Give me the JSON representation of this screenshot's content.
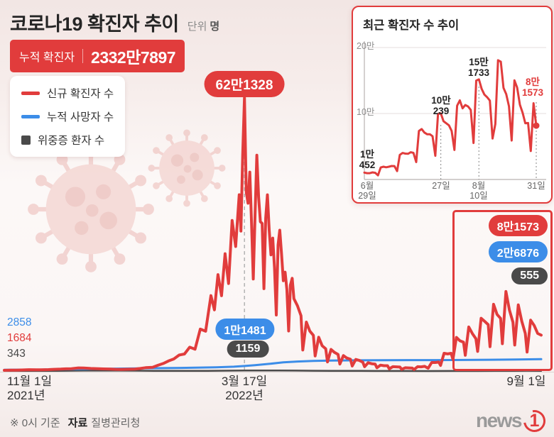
{
  "accent": {
    "red": "#e13c3c",
    "blue": "#3c8de8",
    "dark": "#4a4a4a"
  },
  "header": {
    "title": "코로나19 확진자 추이",
    "unit_label": "단위",
    "unit_value": "명",
    "cumulative_label": "누적 확진자",
    "cumulative_value": "2332만7897"
  },
  "legend": {
    "items": [
      {
        "label": "신규 확진자 수",
        "color": "#e13c3c",
        "shape": "line"
      },
      {
        "label": "누적 사망자 수",
        "color": "#3c8de8",
        "shape": "line"
      },
      {
        "label": "위중증 환자 수",
        "color": "#4a4a4a",
        "shape": "square"
      }
    ]
  },
  "footer": {
    "note_mark": "※ 0시 기준",
    "source_label": "자료",
    "source_value": "질병관리청",
    "logo_news": "news",
    "logo_one": "1"
  },
  "chart_data": {
    "type": "line",
    "title": "코로나19 확진자 추이",
    "unit": "명",
    "main": {
      "x_range_days": 304,
      "y_max": 650000,
      "x_ticks": [
        {
          "day": 0,
          "line1": "11월 1일",
          "line2": "2021년"
        },
        {
          "day": 136,
          "line1": "3월 17일",
          "line2": "2022년"
        },
        {
          "day": 304,
          "line1": "9월 1일",
          "line2": ""
        }
      ],
      "series": [
        {
          "name": "신규 확진자 수",
          "color": "#e13c3c",
          "width": 4,
          "points": [
            [
              0,
              1684
            ],
            [
              4,
              2061
            ],
            [
              7,
              2111
            ],
            [
              10,
              2425
            ],
            [
              14,
              3120
            ],
            [
              18,
              2699
            ],
            [
              21,
              2827
            ],
            [
              25,
              3273
            ],
            [
              28,
              3928
            ],
            [
              32,
              4325
            ],
            [
              35,
              4954
            ],
            [
              38,
              5352
            ],
            [
              42,
              7175
            ],
            [
              45,
              6919
            ],
            [
              49,
              5817
            ],
            [
              52,
              5419
            ],
            [
              56,
              4875
            ],
            [
              60,
              4416
            ],
            [
              63,
              3833
            ],
            [
              66,
              3717
            ],
            [
              70,
              4072
            ],
            [
              74,
              4542
            ],
            [
              77,
              5805
            ],
            [
              80,
              7513
            ],
            [
              84,
              8571
            ],
            [
              87,
              13012
            ],
            [
              90,
              17086
            ],
            [
              93,
              22907
            ],
            [
              96,
              27443
            ],
            [
              99,
              36346
            ],
            [
              102,
              38691
            ],
            [
              105,
              54122
            ],
            [
              108,
              49567
            ],
            [
              111,
              95362
            ],
            [
              114,
              90443
            ],
            [
              117,
              171452
            ],
            [
              119,
              138993
            ],
            [
              121,
              219241
            ],
            [
              123,
              171271
            ],
            [
              125,
              266853
            ],
            [
              127,
              198803
            ],
            [
              129,
              342446
            ],
            [
              131,
              282987
            ],
            [
              133,
              400741
            ],
            [
              134,
              318076
            ],
            [
              135,
              490881
            ],
            [
              136,
              621328
            ],
            [
              137,
              407017
            ],
            [
              138,
              381454
            ],
            [
              139,
              452333
            ],
            [
              140,
              334708
            ],
            [
              141,
              209169
            ],
            [
              142,
              353980
            ],
            [
              143,
              490821
            ],
            [
              144,
              395598
            ],
            [
              145,
              339514
            ],
            [
              146,
              335580
            ],
            [
              147,
              187213
            ],
            [
              148,
              347554
            ],
            [
              149,
              400694
            ],
            [
              150,
              320743
            ],
            [
              151,
              264171
            ],
            [
              152,
              302190
            ],
            [
              153,
              234301
            ],
            [
              154,
              127190
            ],
            [
              155,
              286294
            ],
            [
              156,
              320094
            ],
            [
              157,
              265902
            ],
            [
              158,
              205333
            ],
            [
              159,
              224788
            ],
            [
              160,
              185566
            ],
            [
              161,
              90928
            ],
            [
              162,
              195419
            ],
            [
              163,
              210755
            ],
            [
              164,
              164481
            ],
            [
              166,
              148443
            ],
            [
              168,
              125846
            ],
            [
              169,
              47743
            ],
            [
              171,
              111319
            ],
            [
              173,
              90867
            ],
            [
              175,
              81058
            ],
            [
              176,
              34370
            ],
            [
              178,
              76787
            ],
            [
              180,
              57464
            ],
            [
              182,
              50568
            ],
            [
              183,
              20601
            ],
            [
              185,
              49064
            ],
            [
              187,
              42296
            ],
            [
              189,
              37771
            ],
            [
              190,
              15798
            ],
            [
              192,
              35117
            ],
            [
              194,
              29576
            ],
            [
              196,
              26714
            ],
            [
              197,
              11415
            ],
            [
              199,
              26344
            ],
            [
              201,
              23956
            ],
            [
              203,
              20084
            ],
            [
              204,
              9835
            ],
            [
              206,
              18816
            ],
            [
              208,
              16584
            ],
            [
              210,
              15809
            ],
            [
              211,
              7382
            ],
            [
              213,
              13358
            ],
            [
              215,
              12161
            ],
            [
              217,
              12049
            ],
            [
              218,
              5022
            ],
            [
              220,
              9896
            ],
            [
              222,
              9528
            ],
            [
              224,
              8992
            ],
            [
              225,
              3828
            ],
            [
              227,
              7494
            ],
            [
              229,
              7049
            ],
            [
              231,
              6564
            ],
            [
              232,
              3423
            ],
            [
              234,
              9894
            ],
            [
              236,
              9591
            ],
            [
              238,
              10715
            ],
            [
              240,
              6253
            ],
            [
              242,
              19371
            ],
            [
              244,
              19323
            ],
            [
              246,
              20271
            ],
            [
              247,
              12693
            ],
            [
              249,
              40266
            ],
            [
              251,
              38882
            ],
            [
              253,
              40342
            ],
            [
              254,
              26299
            ],
            [
              256,
              76402
            ],
            [
              258,
              68632
            ],
            [
              260,
              65433
            ],
            [
              261,
              35883
            ],
            [
              263,
              100239
            ],
            [
              265,
              85320
            ],
            [
              267,
              73589
            ],
            [
              268,
              44689
            ],
            [
              270,
              119922
            ],
            [
              272,
              112901
            ],
            [
              274,
              105507
            ],
            [
              275,
              55292
            ],
            [
              277,
              151733
            ],
            [
              279,
              128714
            ],
            [
              281,
              119603
            ],
            [
              282,
              62078
            ],
            [
              284,
              180803
            ],
            [
              286,
              138812
            ],
            [
              288,
              110944
            ],
            [
              289,
              59046
            ],
            [
              291,
              150258
            ],
            [
              293,
              113371
            ],
            [
              295,
              85295
            ],
            [
              296,
              43142
            ],
            [
              298,
              115638
            ],
            [
              300,
              103611
            ],
            [
              302,
              85540
            ],
            [
              304,
              81573
            ]
          ]
        },
        {
          "name": "누적 사망자 수",
          "color": "#3c8de8",
          "width": 3,
          "points": [
            [
              0,
              2858
            ],
            [
              20,
              3300
            ],
            [
              40,
              4130
            ],
            [
              60,
              5382
            ],
            [
              80,
              6210
            ],
            [
              100,
              7102
            ],
            [
              120,
              8394
            ],
            [
              130,
              9875
            ],
            [
              136,
              11481
            ],
            [
              142,
              13432
            ],
            [
              150,
              16230
            ],
            [
              158,
              19679
            ],
            [
              166,
              21667
            ],
            [
              175,
              22958
            ],
            [
              185,
              23771
            ],
            [
              200,
              24371
            ],
            [
              215,
              24629
            ],
            [
              230,
              24794
            ],
            [
              245,
              24890
            ],
            [
              260,
              25144
            ],
            [
              275,
              25710
            ],
            [
              290,
              26316
            ],
            [
              304,
              26876
            ]
          ]
        },
        {
          "name": "위중증 환자 수",
          "color": "#4a4a4a",
          "width": 2.5,
          "points": [
            [
              0,
              343
            ],
            [
              15,
              387
            ],
            [
              30,
              411
            ],
            [
              45,
              964
            ],
            [
              55,
              1015
            ],
            [
              65,
              932
            ],
            [
              75,
              732
            ],
            [
              85,
              369
            ],
            [
              95,
              272
            ],
            [
              105,
              306
            ],
            [
              115,
              512
            ],
            [
              125,
              727
            ],
            [
              136,
              1159
            ],
            [
              145,
              1273
            ],
            [
              155,
              1108
            ],
            [
              165,
              1014
            ],
            [
              175,
              613
            ],
            [
              185,
              493
            ],
            [
              195,
              407
            ],
            [
              210,
              194
            ],
            [
              225,
              130
            ],
            [
              240,
              74
            ],
            [
              255,
              144
            ],
            [
              268,
              234
            ],
            [
              278,
              364
            ],
            [
              288,
              469
            ],
            [
              296,
              566
            ],
            [
              304,
              555
            ]
          ]
        }
      ],
      "annotations": {
        "peak": {
          "label": "62만1328",
          "value": 621328,
          "day": 136
        },
        "deaths_mid": {
          "label": "1만1481",
          "value": 11481,
          "day": 136
        },
        "critical_mid": {
          "label": "1159",
          "value": 1159,
          "day": 136
        },
        "start_deaths": {
          "label": "2858",
          "value": 2858
        },
        "start_new": {
          "label": "1684",
          "value": 1684
        },
        "start_critical": {
          "label": "343",
          "value": 343
        },
        "recent_new": {
          "label": "8만1573",
          "value": 81573
        },
        "recent_deaths": {
          "label": "2만6876",
          "value": 26876
        },
        "recent_critical": {
          "label": "555",
          "value": 555
        }
      }
    },
    "inset": {
      "title": "최근 확진자 수 추이",
      "y_ticks": [
        {
          "label": "20만",
          "value": 200000
        },
        {
          "label": "10만",
          "value": 100000
        }
      ],
      "values": [
        10452,
        9595,
        9522,
        10715,
        10059,
        6253,
        18147,
        19371,
        18511,
        19323,
        20410,
        20271,
        12693,
        37360,
        40266,
        39196,
        38882,
        41310,
        40342,
        26299,
        73582,
        76402,
        71170,
        68632,
        68551,
        65433,
        35883,
        99327,
        100239,
        88384,
        85320,
        82002,
        73589,
        44689,
        111789,
        119922,
        107894,
        112901,
        110666,
        105507,
        55292,
        149897,
        151733,
        137241,
        128714,
        124592,
        119603,
        62078,
        84128,
        180803,
        178574,
        138812,
        129411,
        110944,
        59046,
        150258,
        139339,
        113371,
        101140,
        85295,
        85540,
        43142,
        115638,
        81573
      ],
      "annotations": [
        {
          "line1": "1만",
          "line2": "452",
          "value": 10452,
          "day": 0
        },
        {
          "line1": "10만",
          "line2": "239",
          "value": 100239,
          "day": 28
        },
        {
          "line1": "15만",
          "line2": "1733",
          "value": 151733,
          "day": 42
        },
        {
          "line1": "8만",
          "line2": "1573",
          "value": 81573,
          "day": 63,
          "highlight": true
        }
      ],
      "x_ticks": [
        {
          "day": 0,
          "line1": "6월",
          "line2": "29일"
        },
        {
          "day": 28,
          "line1": "27일",
          "line2": ""
        },
        {
          "day": 42,
          "line1": "8월",
          "line2": "10일"
        },
        {
          "day": 63,
          "line1": "31일",
          "line2": ""
        }
      ]
    }
  }
}
